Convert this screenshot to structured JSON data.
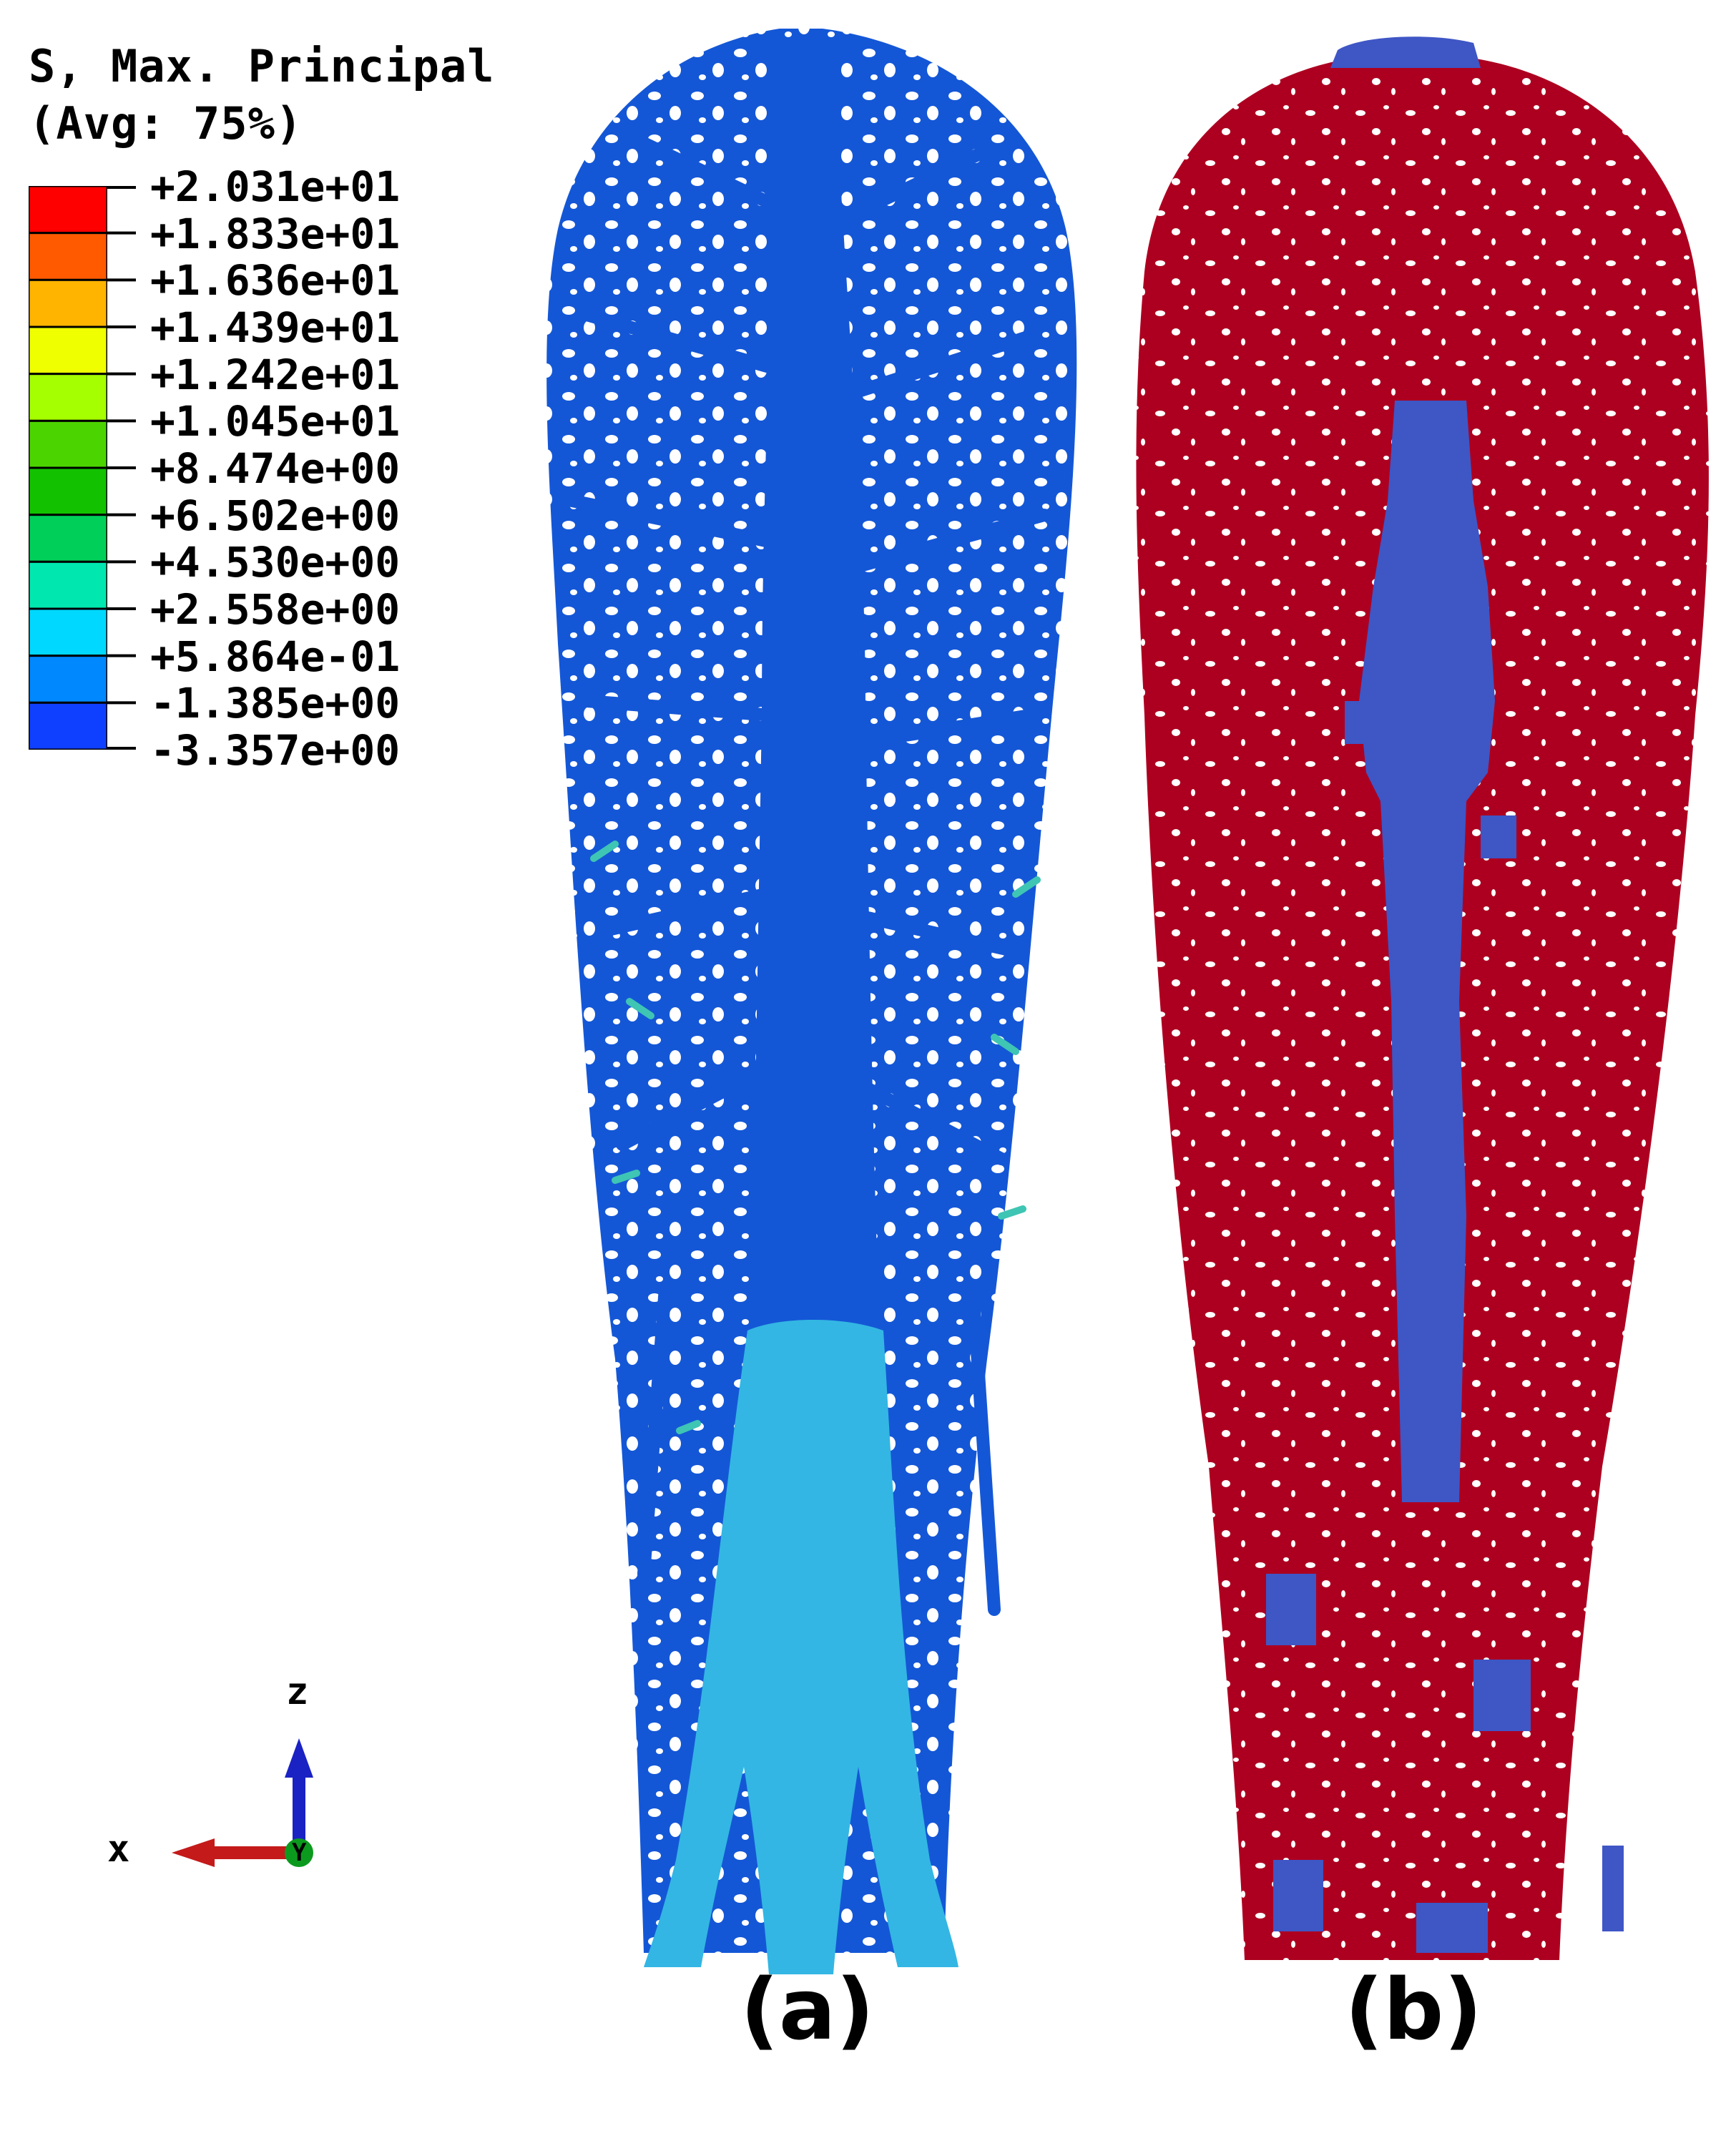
{
  "legend": {
    "title_line1": "S, Max. Principal",
    "title_line2": "(Avg: 75%)",
    "ticks": [
      "+2.031e+01",
      "+1.833e+01",
      "+1.636e+01",
      "+1.439e+01",
      "+1.242e+01",
      "+1.045e+01",
      "+8.474e+00",
      "+6.502e+00",
      "+4.530e+00",
      "+2.558e+00",
      "+5.864e-01",
      "-1.385e+00",
      "-3.357e+00"
    ],
    "bands": [
      "#ff0000",
      "#ff5a00",
      "#ffb400",
      "#f0ff00",
      "#a6ff00",
      "#4cd400",
      "#12c200",
      "#00d05a",
      "#00e8b0",
      "#00d8ff",
      "#0088ff",
      "#1040ff"
    ],
    "bottom_band_color": "#0000ff"
  },
  "panels": {
    "a": {
      "label": "(a)",
      "main_color": "#1457d6",
      "base_color": "#33b6e3",
      "accent_color": "#3fc5b3"
    },
    "b": {
      "label": "(b)",
      "main_color": "#ad0020",
      "secondary_color": "#3f56c5"
    }
  },
  "triad": {
    "z_label": "z",
    "x_label": "x",
    "y_label": "Y",
    "z_color": "#1a22c4",
    "x_color": "#c41a1a",
    "y_color": "#0c9a1e"
  }
}
